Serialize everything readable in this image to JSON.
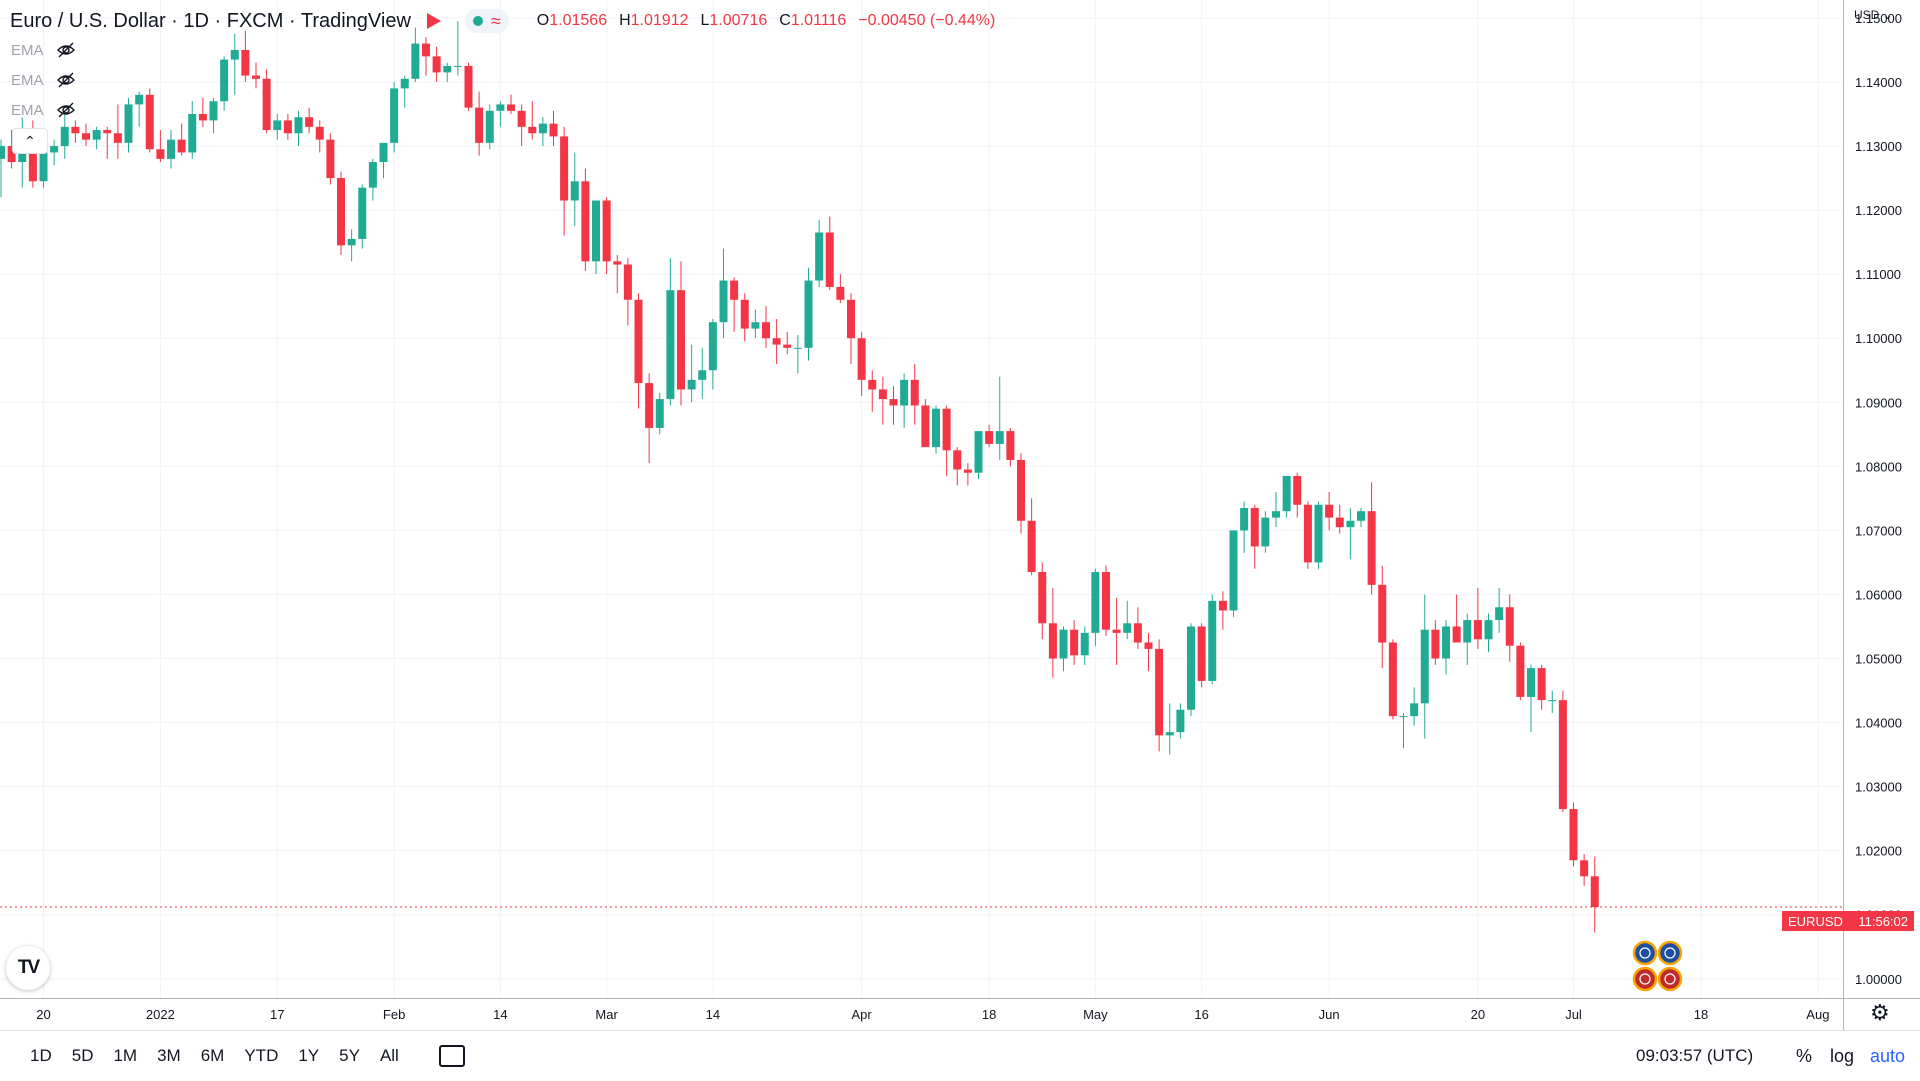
{
  "header": {
    "symbol": "Euro / U.S. Dollar",
    "interval": "1D",
    "source": "FXCM",
    "platform": "TradingView",
    "ohlc": {
      "o_label": "O",
      "o_value": "1.01566",
      "h_label": "H",
      "h_value": "1.01912",
      "l_label": "L",
      "l_value": "1.00716",
      "c_label": "C",
      "c_value": "1.01116",
      "change": "−0.00450 (−0.44%)"
    }
  },
  "indicators": [
    {
      "label": "EMA",
      "icon": "eye-off-icon"
    },
    {
      "label": "EMA",
      "icon": "eye-off-icon"
    },
    {
      "label": "EMA",
      "icon": "eye-off-icon"
    }
  ],
  "collapse_label": "⌃",
  "currency": "USD ⌄",
  "price_tag": {
    "symbol": "EURUSD",
    "countdown": "11:56:02"
  },
  "logo_text": "TV",
  "toolbar": {
    "timeframes": [
      "1D",
      "5D",
      "1M",
      "3M",
      "6M",
      "YTD",
      "1Y",
      "5Y",
      "All"
    ],
    "clock": "09:03:57 (UTC)",
    "percent": "%",
    "log": "log",
    "auto": "auto"
  },
  "colors": {
    "up": "#22ab94",
    "down": "#f23645",
    "grid": "#f0f3fa",
    "text": "#131722"
  },
  "chart_data": {
    "type": "candlestick",
    "title": "Euro / U.S. Dollar · 1D · FXCM",
    "ylim": [
      0.997,
      1.1528
    ],
    "y_ticks": [
      1.0,
      1.01,
      1.02,
      1.03,
      1.04,
      1.05,
      1.06,
      1.07,
      1.08,
      1.09,
      1.1,
      1.11,
      1.12,
      1.13,
      1.14,
      1.15
    ],
    "y_tick_labels": [
      "1.00000",
      "1.01000",
      "1.02000",
      "1.03000",
      "1.04000",
      "1.05000",
      "1.06000",
      "1.07000",
      "1.08000",
      "1.09000",
      "1.10000",
      "1.11000",
      "1.12000",
      "1.13000",
      "1.14000",
      "1.15000"
    ],
    "x_tick_labels": [
      {
        "label": "20",
        "index": 4
      },
      {
        "label": "2022",
        "index": 15
      },
      {
        "label": "17",
        "index": 26
      },
      {
        "label": "Feb",
        "index": 37
      },
      {
        "label": "14",
        "index": 47
      },
      {
        "label": "Mar",
        "index": 57
      },
      {
        "label": "14",
        "index": 67
      },
      {
        "label": "Apr",
        "index": 81
      },
      {
        "label": "18",
        "index": 93
      },
      {
        "label": "May",
        "index": 103
      },
      {
        "label": "16",
        "index": 113
      },
      {
        "label": "Jun",
        "index": 125
      },
      {
        "label": "20",
        "index": 139
      },
      {
        "label": "Jul",
        "index": 148
      },
      {
        "label": "18",
        "index": 160
      },
      {
        "label": "Aug",
        "index": 171
      }
    ],
    "candles": [
      [
        1.128,
        1.131,
        1.122,
        1.13
      ],
      [
        1.13,
        1.1325,
        1.1265,
        1.1275
      ],
      [
        1.1275,
        1.1345,
        1.1235,
        1.1325
      ],
      [
        1.1325,
        1.134,
        1.1235,
        1.1245
      ],
      [
        1.1245,
        1.13,
        1.1235,
        1.129
      ],
      [
        1.129,
        1.131,
        1.127,
        1.13
      ],
      [
        1.13,
        1.135,
        1.128,
        1.133
      ],
      [
        1.133,
        1.134,
        1.1305,
        1.132
      ],
      [
        1.132,
        1.1335,
        1.13,
        1.131
      ],
      [
        1.131,
        1.133,
        1.1295,
        1.1325
      ],
      [
        1.1325,
        1.133,
        1.128,
        1.132
      ],
      [
        1.132,
        1.1365,
        1.128,
        1.1305
      ],
      [
        1.1305,
        1.1375,
        1.129,
        1.1365
      ],
      [
        1.1365,
        1.1385,
        1.133,
        1.138
      ],
      [
        1.138,
        1.139,
        1.129,
        1.1295
      ],
      [
        1.1295,
        1.1325,
        1.1275,
        1.128
      ],
      [
        1.128,
        1.1325,
        1.1265,
        1.131
      ],
      [
        1.131,
        1.1335,
        1.1285,
        1.129
      ],
      [
        1.129,
        1.137,
        1.128,
        1.135
      ],
      [
        1.135,
        1.1375,
        1.133,
        1.134
      ],
      [
        1.134,
        1.1375,
        1.132,
        1.137
      ],
      [
        1.137,
        1.144,
        1.1355,
        1.1435
      ],
      [
        1.1435,
        1.1475,
        1.138,
        1.145
      ],
      [
        1.145,
        1.148,
        1.14,
        1.141
      ],
      [
        1.141,
        1.143,
        1.139,
        1.1405
      ],
      [
        1.1405,
        1.142,
        1.132,
        1.1325
      ],
      [
        1.1325,
        1.135,
        1.131,
        1.134
      ],
      [
        1.134,
        1.135,
        1.131,
        1.132
      ],
      [
        1.132,
        1.1355,
        1.13,
        1.1345
      ],
      [
        1.1345,
        1.136,
        1.132,
        1.133
      ],
      [
        1.133,
        1.134,
        1.129,
        1.131
      ],
      [
        1.131,
        1.132,
        1.124,
        1.125
      ],
      [
        1.125,
        1.126,
        1.113,
        1.1145
      ],
      [
        1.1145,
        1.117,
        1.112,
        1.1155
      ],
      [
        1.1155,
        1.124,
        1.114,
        1.1235
      ],
      [
        1.1235,
        1.128,
        1.1215,
        1.1275
      ],
      [
        1.1275,
        1.13,
        1.125,
        1.1305
      ],
      [
        1.1305,
        1.14,
        1.129,
        1.139
      ],
      [
        1.139,
        1.141,
        1.136,
        1.1405
      ],
      [
        1.1405,
        1.1485,
        1.14,
        1.146
      ],
      [
        1.146,
        1.147,
        1.141,
        1.144
      ],
      [
        1.144,
        1.1455,
        1.14,
        1.1415
      ],
      [
        1.1415,
        1.143,
        1.14,
        1.1425
      ],
      [
        1.1425,
        1.1495,
        1.141,
        1.1425
      ],
      [
        1.1425,
        1.143,
        1.1355,
        1.136
      ],
      [
        1.136,
        1.1385,
        1.1285,
        1.1305
      ],
      [
        1.1305,
        1.1365,
        1.1295,
        1.1355
      ],
      [
        1.1355,
        1.137,
        1.133,
        1.1365
      ],
      [
        1.1365,
        1.138,
        1.135,
        1.1355
      ],
      [
        1.1355,
        1.1365,
        1.13,
        1.133
      ],
      [
        1.133,
        1.137,
        1.131,
        1.132
      ],
      [
        1.132,
        1.1345,
        1.13,
        1.1335
      ],
      [
        1.1335,
        1.1355,
        1.13,
        1.1315
      ],
      [
        1.1315,
        1.133,
        1.116,
        1.1215
      ],
      [
        1.1215,
        1.129,
        1.1175,
        1.1245
      ],
      [
        1.1245,
        1.1265,
        1.1105,
        1.112
      ],
      [
        1.112,
        1.1215,
        1.11,
        1.1215
      ],
      [
        1.1215,
        1.122,
        1.11,
        1.112
      ],
      [
        1.112,
        1.113,
        1.107,
        1.1115
      ],
      [
        1.1115,
        1.1125,
        1.102,
        1.106
      ],
      [
        1.106,
        1.107,
        1.089,
        1.093
      ],
      [
        1.093,
        1.0945,
        1.0805,
        1.086
      ],
      [
        1.086,
        1.0915,
        1.085,
        1.0905
      ],
      [
        1.0905,
        1.1125,
        1.0895,
        1.1075
      ],
      [
        1.1075,
        1.112,
        1.0895,
        1.092
      ],
      [
        1.092,
        1.099,
        1.09,
        1.0935
      ],
      [
        1.0935,
        1.0985,
        1.0905,
        1.095
      ],
      [
        1.095,
        1.103,
        1.092,
        1.1025
      ],
      [
        1.1025,
        1.114,
        1.1,
        1.109
      ],
      [
        1.109,
        1.1095,
        1.101,
        1.106
      ],
      [
        1.106,
        1.107,
        1.0995,
        1.1015
      ],
      [
        1.1015,
        1.1045,
        1.1,
        1.1025
      ],
      [
        1.1025,
        1.105,
        1.0985,
        1.1
      ],
      [
        1.1,
        1.103,
        1.096,
        1.099
      ],
      [
        1.099,
        1.101,
        1.0975,
        1.0985
      ],
      [
        1.0985,
        1.1005,
        1.0945,
        1.0985
      ],
      [
        1.0985,
        1.111,
        1.0965,
        1.109
      ],
      [
        1.109,
        1.1185,
        1.108,
        1.1165
      ],
      [
        1.1165,
        1.119,
        1.1075,
        1.108
      ],
      [
        1.108,
        1.11,
        1.1055,
        1.106
      ],
      [
        1.106,
        1.107,
        1.096,
        1.1
      ],
      [
        1.1,
        1.101,
        1.091,
        1.0935
      ],
      [
        1.0935,
        1.095,
        1.0885,
        1.092
      ],
      [
        1.092,
        1.094,
        1.0865,
        1.0905
      ],
      [
        1.0905,
        1.0925,
        1.0865,
        1.0895
      ],
      [
        1.0895,
        1.0945,
        1.086,
        1.0935
      ],
      [
        1.0935,
        1.096,
        1.0865,
        1.0895
      ],
      [
        1.0895,
        1.0905,
        1.083,
        1.083
      ],
      [
        1.083,
        1.0895,
        1.082,
        1.089
      ],
      [
        1.089,
        1.0895,
        1.0785,
        1.0825
      ],
      [
        1.0825,
        1.083,
        1.077,
        1.0795
      ],
      [
        1.0795,
        1.0805,
        1.077,
        1.079
      ],
      [
        1.079,
        1.0855,
        1.078,
        1.0855
      ],
      [
        1.0855,
        1.0865,
        1.083,
        1.0835
      ],
      [
        1.0835,
        1.094,
        1.081,
        1.0855
      ],
      [
        1.0855,
        1.086,
        1.08,
        1.081
      ],
      [
        1.081,
        1.082,
        1.0695,
        1.0715
      ],
      [
        1.0715,
        1.075,
        1.063,
        1.0635
      ],
      [
        1.0635,
        1.065,
        1.053,
        1.0555
      ],
      [
        1.0555,
        1.061,
        1.047,
        1.05
      ],
      [
        1.05,
        1.055,
        1.048,
        1.0545
      ],
      [
        1.0545,
        1.056,
        1.049,
        1.0505
      ],
      [
        1.0505,
        1.055,
        1.049,
        1.054
      ],
      [
        1.054,
        1.064,
        1.052,
        1.0635
      ],
      [
        1.0635,
        1.0645,
        1.0535,
        1.0545
      ],
      [
        1.0545,
        1.0595,
        1.049,
        1.054
      ],
      [
        1.054,
        1.059,
        1.053,
        1.0555
      ],
      [
        1.0555,
        1.058,
        1.0515,
        1.0525
      ],
      [
        1.0525,
        1.054,
        1.048,
        1.0515
      ],
      [
        1.0515,
        1.053,
        1.0355,
        1.038
      ],
      [
        1.038,
        1.043,
        1.035,
        1.0385
      ],
      [
        1.0385,
        1.043,
        1.0375,
        1.042
      ],
      [
        1.042,
        1.0555,
        1.041,
        1.055
      ],
      [
        1.055,
        1.0555,
        1.0455,
        1.0465
      ],
      [
        1.0465,
        1.06,
        1.046,
        1.059
      ],
      [
        1.059,
        1.0605,
        1.0545,
        1.0575
      ],
      [
        1.0575,
        1.069,
        1.0565,
        1.07
      ],
      [
        1.07,
        1.0745,
        1.0665,
        1.0735
      ],
      [
        1.0735,
        1.074,
        1.064,
        1.0675
      ],
      [
        1.0675,
        1.073,
        1.0665,
        1.072
      ],
      [
        1.072,
        1.076,
        1.0705,
        1.073
      ],
      [
        1.073,
        1.0785,
        1.072,
        1.0785
      ],
      [
        1.0785,
        1.079,
        1.072,
        1.074
      ],
      [
        1.074,
        1.0745,
        1.064,
        1.065
      ],
      [
        1.065,
        1.0745,
        1.064,
        1.074
      ],
      [
        1.074,
        1.076,
        1.07,
        1.072
      ],
      [
        1.072,
        1.074,
        1.0695,
        1.0705
      ],
      [
        1.0705,
        1.0735,
        1.0655,
        1.0715
      ],
      [
        1.0715,
        1.0735,
        1.0705,
        1.073
      ],
      [
        1.073,
        1.0775,
        1.06,
        1.0615
      ],
      [
        1.0615,
        1.0645,
        1.0485,
        1.0525
      ],
      [
        1.0525,
        1.053,
        1.0405,
        1.041
      ],
      [
        1.041,
        1.0415,
        1.036,
        1.041
      ],
      [
        1.041,
        1.0455,
        1.0395,
        1.043
      ],
      [
        1.043,
        1.06,
        1.0375,
        1.0545
      ],
      [
        1.0545,
        1.056,
        1.049,
        1.05
      ],
      [
        1.05,
        1.056,
        1.0475,
        1.055
      ],
      [
        1.055,
        1.06,
        1.0535,
        1.0525
      ],
      [
        1.0525,
        1.057,
        1.049,
        1.056
      ],
      [
        1.056,
        1.061,
        1.0515,
        1.053
      ],
      [
        1.053,
        1.057,
        1.051,
        1.056
      ],
      [
        1.056,
        1.061,
        1.054,
        1.058
      ],
      [
        1.058,
        1.06,
        1.0495,
        1.052
      ],
      [
        1.052,
        1.0525,
        1.0435,
        1.044
      ],
      [
        1.044,
        1.049,
        1.0385,
        1.0485
      ],
      [
        1.0485,
        1.049,
        1.042,
        1.0435
      ],
      [
        1.0435,
        1.045,
        1.0415,
        1.0435
      ],
      [
        1.0435,
        1.045,
        1.026,
        1.0265
      ],
      [
        1.0265,
        1.0275,
        1.0175,
        1.0185
      ],
      [
        1.0185,
        1.0195,
        1.0145,
        1.016
      ],
      [
        1.016,
        1.0191,
        1.0072,
        1.0112
      ]
    ]
  }
}
